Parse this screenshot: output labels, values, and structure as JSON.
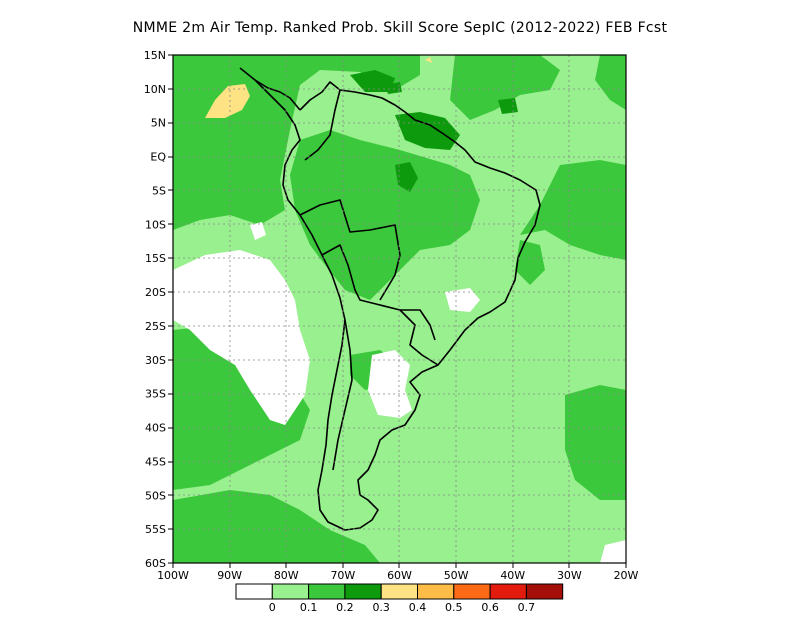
{
  "title": "NMME  2m Air Temp. Ranked Prob. Skill Score SepIC (2012-2022) FEB Fcst",
  "map": {
    "region": "South America",
    "lon_range": [
      -100,
      -20
    ],
    "lat_range": [
      -60,
      15
    ],
    "lat_labels": [
      "15N",
      "10N",
      "5N",
      "EQ",
      "5S",
      "10S",
      "15S",
      "20S",
      "25S",
      "30S",
      "35S",
      "40S",
      "45S",
      "50S",
      "55S",
      "60S"
    ],
    "lon_labels": [
      "100W",
      "90W",
      "80W",
      "70W",
      "60W",
      "50W",
      "40W",
      "30W",
      "20W"
    ],
    "gridlines": "dotted"
  },
  "colorbar": {
    "colors": [
      "#ffffff",
      "#98f08e",
      "#3cc83c",
      "#0d9a0d",
      "#fde383",
      "#fdbc47",
      "#fd6a16",
      "#e31b0f",
      "#a50f0a"
    ],
    "labels": [
      "0",
      "0.1",
      "0.2",
      "0.3",
      "0.4",
      "0.5",
      "0.6",
      "0.7"
    ]
  }
}
